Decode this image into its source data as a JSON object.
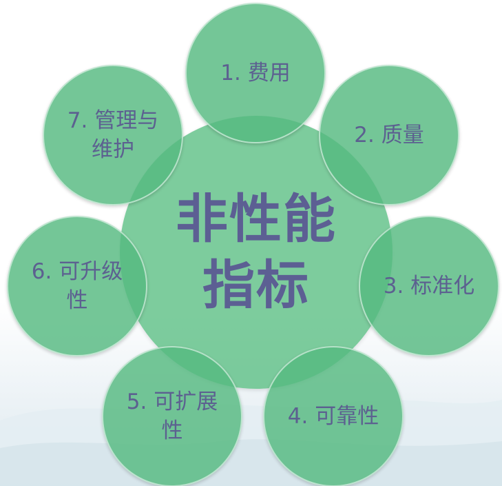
{
  "center": {
    "label": "非性能指标"
  },
  "nodes": [
    {
      "id": "1",
      "label": "1. 费用"
    },
    {
      "id": "2",
      "label": "2. 质量"
    },
    {
      "id": "3",
      "label": "3. 标准化"
    },
    {
      "id": "4",
      "label": "4. 可靠性"
    },
    {
      "id": "5",
      "label": "5. 可扩展性"
    },
    {
      "id": "6",
      "label": "6. 可升级性"
    },
    {
      "id": "7",
      "label": "7.  管理与维护"
    }
  ],
  "colors": {
    "circle_fill": "#58be82",
    "text": "#5c6090"
  }
}
